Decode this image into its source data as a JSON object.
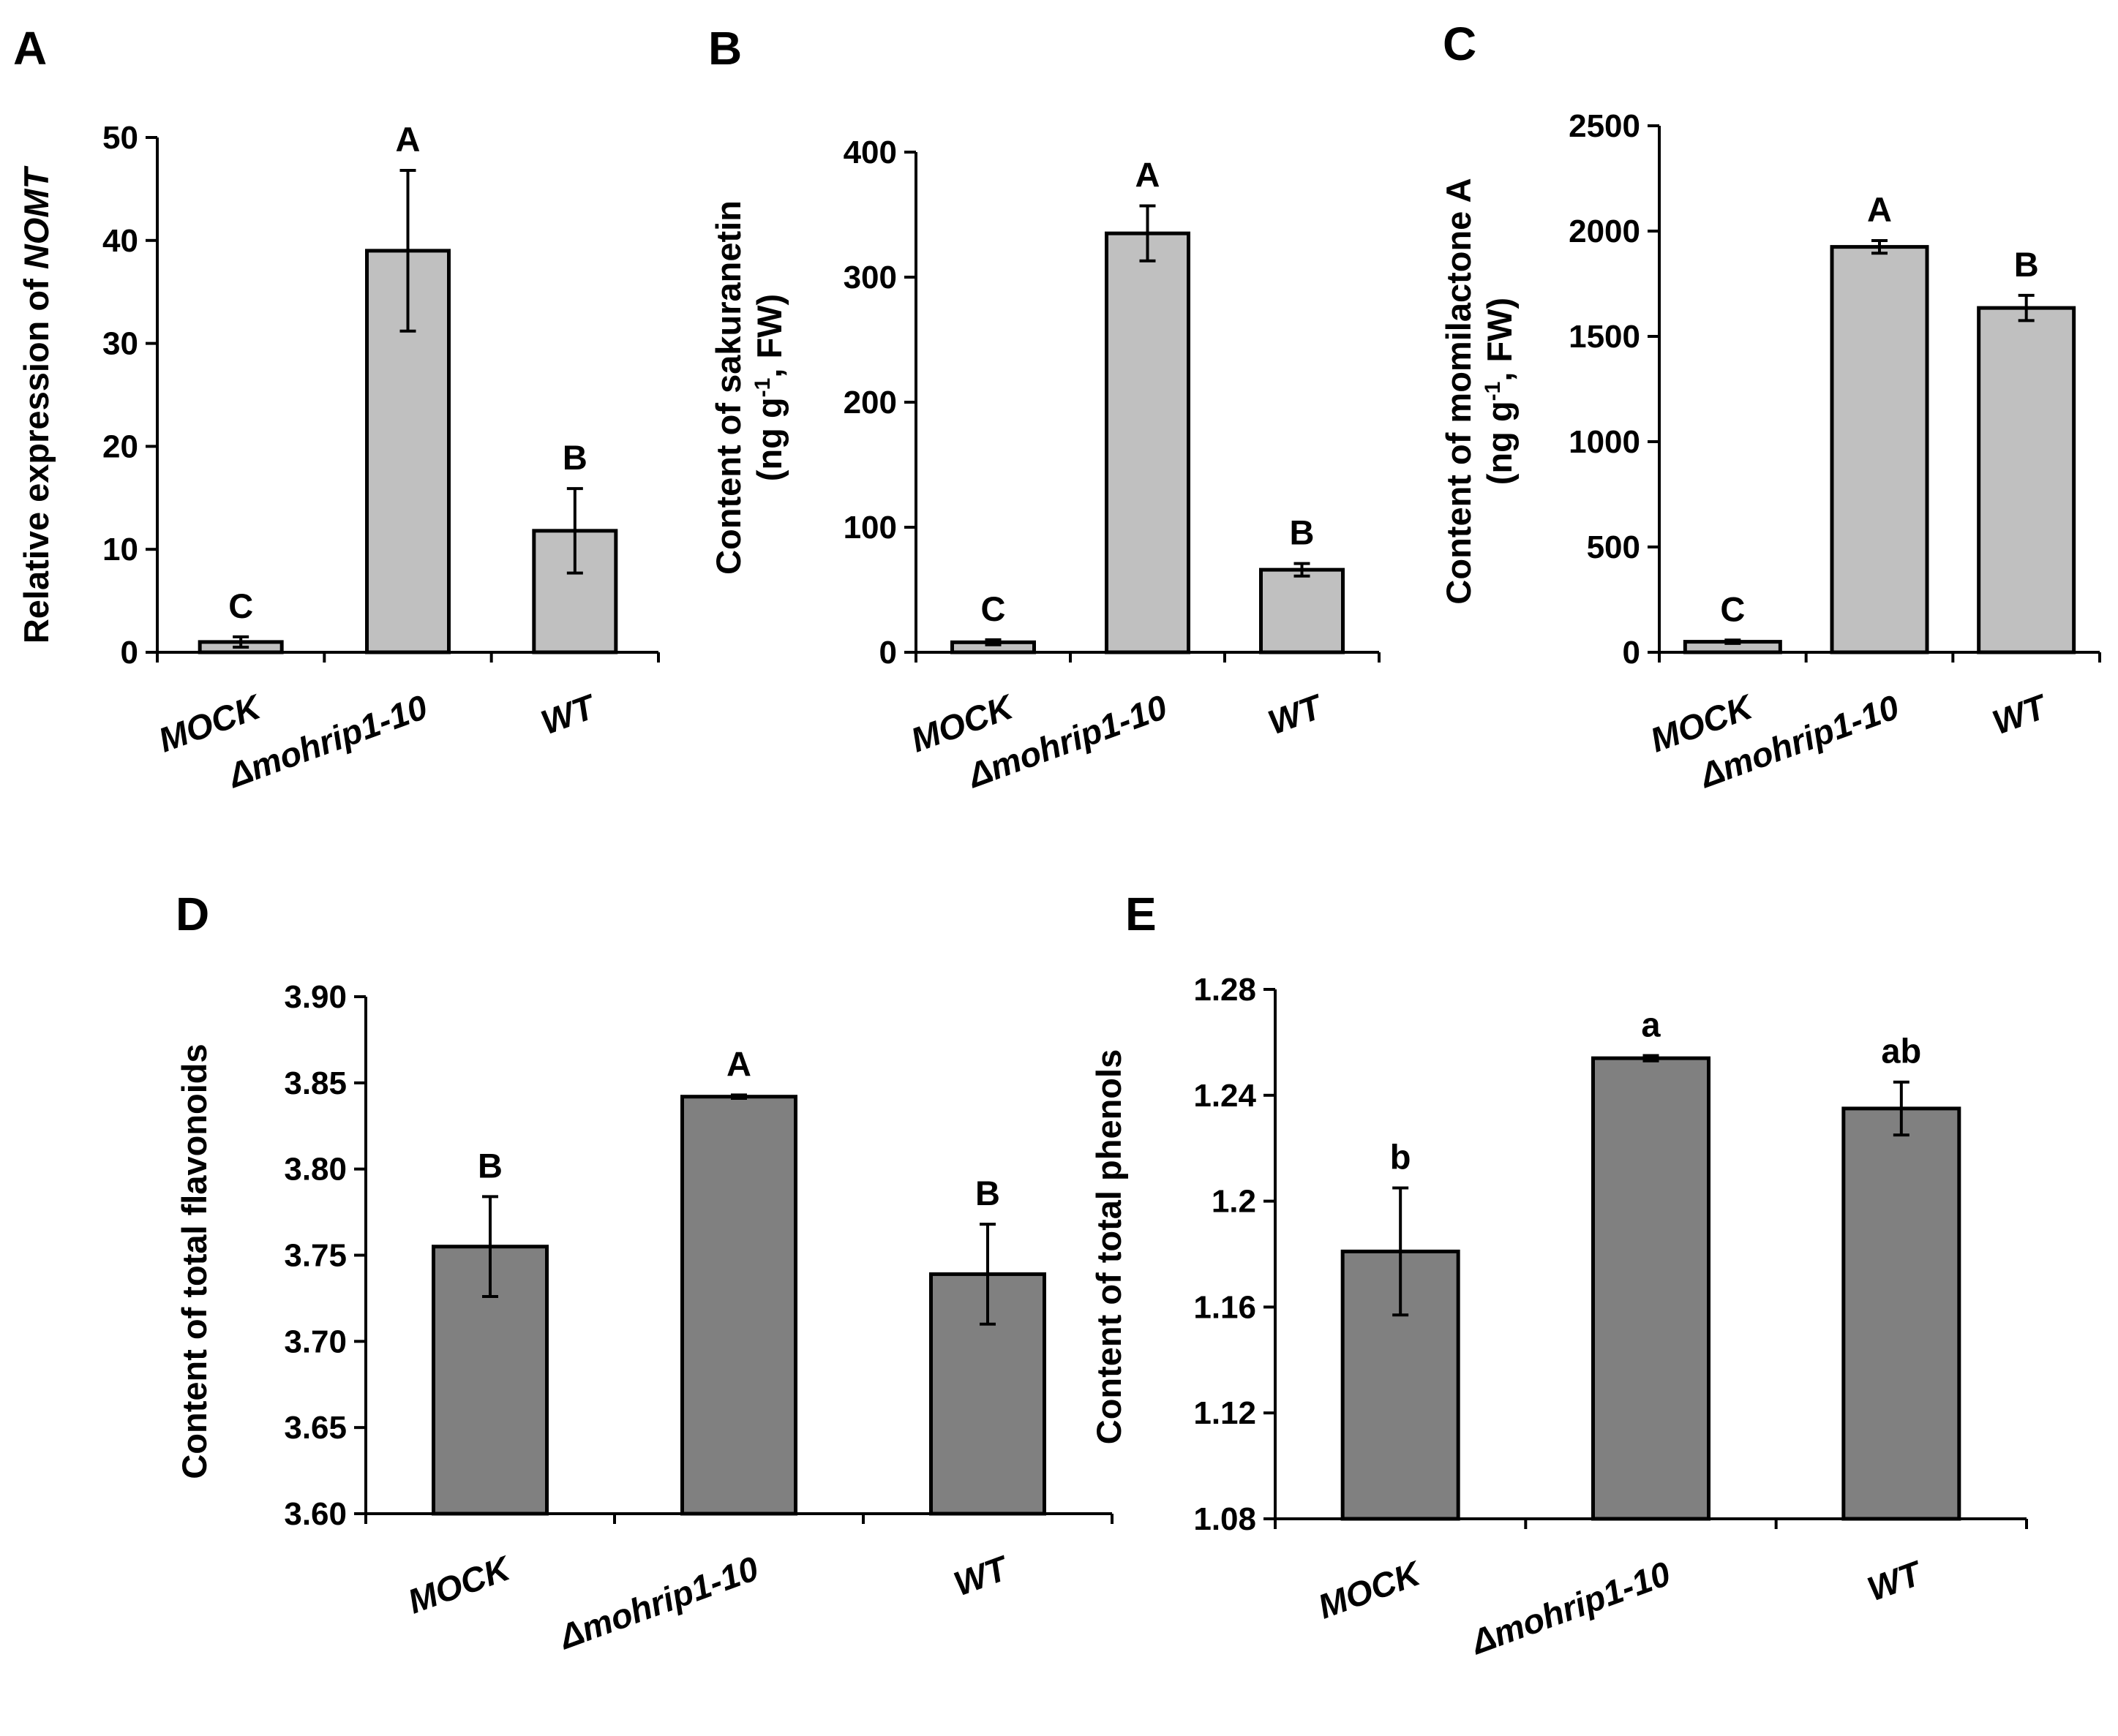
{
  "chart_data": [
    {
      "panel": "A",
      "type": "bar",
      "categories": [
        "MOCK",
        "Δmohrip1-10",
        "WT"
      ],
      "values": [
        1,
        39,
        11.8
      ],
      "errors": [
        0.5,
        7.8,
        4.1
      ],
      "significance": [
        "C",
        "A",
        "B"
      ],
      "ylabel_prefix": "Relative expression of ",
      "ylabel_italic": "NOMT",
      "ylim": [
        0,
        50
      ],
      "yticks": [
        "0",
        "10",
        "20",
        "30",
        "40",
        "50"
      ],
      "bar_color": "#c0c0c0"
    },
    {
      "panel": "B",
      "type": "bar",
      "categories": [
        "MOCK",
        "Δmohrip1-10",
        "WT"
      ],
      "values": [
        8,
        335,
        66
      ],
      "errors": [
        2,
        22,
        5
      ],
      "significance": [
        "C",
        "A",
        "B"
      ],
      "ylabel_line1": "Content of sakuranetin",
      "ylabel_line2_pre": "(ng g",
      "ylabel_line2_sup": "-1",
      "ylabel_line2_post": ", FW)",
      "ylim": [
        0,
        400
      ],
      "yticks": [
        "0",
        "100",
        "200",
        "300",
        "400"
      ],
      "bar_color": "#c0c0c0"
    },
    {
      "panel": "C",
      "type": "bar",
      "categories": [
        "MOCK",
        "Δmohrip1-10",
        "WT"
      ],
      "values": [
        50,
        1925,
        1635
      ],
      "errors": [
        8,
        30,
        60
      ],
      "significance": [
        "C",
        "A",
        "B"
      ],
      "ylabel_line1": "Content of momilactone A",
      "ylabel_line2_pre": "(ng g",
      "ylabel_line2_sup": "-1",
      "ylabel_line2_post": ", FW)",
      "ylim": [
        0,
        2500
      ],
      "yticks": [
        "0",
        "500",
        "1000",
        "1500",
        "2000",
        "2500"
      ],
      "bar_color": "#c0c0c0"
    },
    {
      "panel": "D",
      "type": "bar",
      "categories": [
        "MOCK",
        "Δmohrip1-10",
        "WT"
      ],
      "values": [
        3.755,
        3.842,
        3.739
      ],
      "errors": [
        0.029,
        0.001,
        0.029
      ],
      "significance": [
        "B",
        "A",
        "B"
      ],
      "ylabel": "Content of total flavonoids",
      "ylim": [
        3.6,
        3.9
      ],
      "yticks": [
        "3.60",
        "3.65",
        "3.70",
        "3.75",
        "3.80",
        "3.85",
        "3.90"
      ],
      "bar_color": "#808080"
    },
    {
      "panel": "E",
      "type": "bar",
      "categories": [
        "MOCK",
        "Δmohrip1-10",
        "WT"
      ],
      "values": [
        1.181,
        1.254,
        1.235
      ],
      "errors": [
        0.024,
        0.001,
        0.01
      ],
      "significance": [
        "b",
        "a",
        "ab"
      ],
      "ylabel": "Content of total phenols",
      "ylim": [
        1.08,
        1.28
      ],
      "yticks": [
        "1.08",
        "1.12",
        "1.16",
        "1.2",
        "1.24",
        "1.28"
      ],
      "bar_color": "#808080"
    }
  ]
}
